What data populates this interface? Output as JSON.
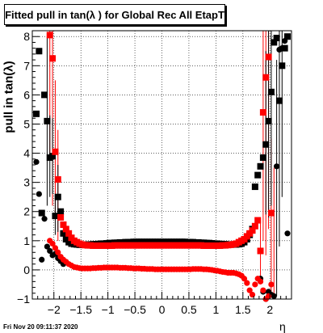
{
  "title": "Fitted pull in tan(λ ) for Global Rec All EtapT",
  "timestamp": "Fri Nov 20 09:11:37 2020",
  "colors": {
    "series_black": "#000000",
    "series_red": "#ff0000",
    "grid": "#000000"
  },
  "chart_data": {
    "type": "scatter",
    "title": "Fitted pull in tan(λ ) for Global Rec All EtapT",
    "xlabel": "η",
    "ylabel": "pull in tan(λ)",
    "xlim": [
      -2.4,
      2.4
    ],
    "ylim": [
      -1,
      8.2
    ],
    "grid": true,
    "x_ticks": [
      -2,
      -1.5,
      -1,
      -0.5,
      0,
      0.5,
      1,
      1.5,
      2
    ],
    "x_tick_labels": [
      "−2",
      "−1.5",
      "−1",
      "−0.5",
      "0",
      "0.5",
      "1",
      "1.5",
      "2"
    ],
    "y_ticks": [
      -1,
      0,
      1,
      2,
      3,
      4,
      5,
      6,
      7,
      8
    ],
    "y_tick_labels": [
      "−1",
      "0",
      "1",
      "2",
      "3",
      "4",
      "5",
      "6",
      "7",
      "8"
    ],
    "series": [
      {
        "color": "#000000",
        "marker": "square",
        "x": [
          -2.325,
          -2.275,
          -2.225,
          -2.175,
          -2.125,
          -2.075,
          -2.025,
          -1.975,
          -1.925,
          -1.875,
          -1.825,
          -1.775,
          -1.725,
          -1.675,
          -1.625,
          -1.575,
          -1.525,
          -1.475,
          -1.425,
          -1.375,
          -1.325,
          -1.275,
          -1.225,
          -1.175,
          -1.125,
          -1.075,
          -1.025,
          -0.975,
          -0.925,
          -0.875,
          -0.825,
          -0.775,
          -0.725,
          -0.675,
          -0.625,
          -0.575,
          -0.525,
          -0.475,
          -0.425,
          -0.375,
          -0.325,
          -0.275,
          -0.225,
          -0.175,
          -0.125,
          -0.075,
          -0.025,
          0.025,
          0.075,
          0.125,
          0.175,
          0.225,
          0.275,
          0.325,
          0.375,
          0.425,
          0.475,
          0.525,
          0.575,
          0.625,
          0.675,
          0.725,
          0.775,
          0.825,
          0.875,
          0.925,
          0.975,
          1.025,
          1.075,
          1.125,
          1.175,
          1.225,
          1.275,
          1.325,
          1.375,
          1.425,
          1.475,
          1.525,
          1.575,
          1.625,
          1.675,
          1.725,
          1.775,
          1.825,
          1.875,
          1.925,
          1.975,
          2.025,
          2.075,
          2.125,
          2.175,
          2.225,
          2.275,
          2.325
        ],
        "y": [
          5.35,
          7.5,
          1.95,
          6.0,
          5.1,
          3.85,
          3.9,
          1.85,
          2.5,
          2.0,
          1.25,
          1.05,
          0.95,
          0.9,
          0.88,
          0.87,
          0.86,
          0.86,
          0.86,
          0.87,
          0.87,
          0.88,
          0.88,
          0.89,
          0.9,
          0.9,
          0.91,
          0.92,
          0.92,
          0.93,
          0.93,
          0.94,
          0.94,
          0.95,
          0.95,
          0.95,
          0.96,
          0.96,
          0.96,
          0.96,
          0.96,
          0.96,
          0.96,
          0.96,
          0.96,
          0.96,
          0.96,
          0.96,
          0.96,
          0.96,
          0.96,
          0.96,
          0.96,
          0.96,
          0.96,
          0.96,
          0.95,
          0.95,
          0.95,
          0.94,
          0.94,
          0.93,
          0.93,
          0.92,
          0.92,
          0.91,
          0.9,
          0.9,
          0.89,
          0.88,
          0.88,
          0.87,
          0.87,
          0.87,
          0.87,
          0.88,
          0.9,
          0.95,
          1.05,
          1.2,
          1.4,
          2.85,
          3.25,
          3.55,
          3.85,
          4.3,
          5.1,
          6.1,
          7.8,
          7.95,
          5.8,
          7.0,
          7.6,
          8.0
        ]
      },
      {
        "color": "#ff0000",
        "marker": "square",
        "x": [
          -2.075,
          -2.025,
          -1.975,
          -1.925,
          -1.875,
          -1.825,
          -1.775,
          -1.725,
          -1.675,
          -1.625,
          -1.575,
          -1.525,
          -1.475,
          -1.425,
          -1.375,
          -1.325,
          -1.275,
          -1.225,
          -1.175,
          -1.125,
          -1.075,
          -1.025,
          -0.975,
          -0.925,
          -0.875,
          -0.825,
          -0.775,
          -0.725,
          -0.675,
          -0.625,
          -0.575,
          -0.525,
          -0.475,
          -0.425,
          -0.375,
          -0.325,
          -0.275,
          -0.225,
          -0.175,
          -0.125,
          -0.075,
          -0.025,
          0.025,
          0.075,
          0.125,
          0.175,
          0.225,
          0.275,
          0.325,
          0.375,
          0.425,
          0.475,
          0.525,
          0.575,
          0.625,
          0.675,
          0.725,
          0.775,
          0.825,
          0.875,
          0.925,
          0.975,
          1.025,
          1.075,
          1.125,
          1.175,
          1.225,
          1.275,
          1.325,
          1.375,
          1.425,
          1.475,
          1.525,
          1.575,
          1.625,
          1.675,
          1.725,
          1.775,
          1.825,
          1.875,
          1.925,
          1.975,
          2.025
        ],
        "y": [
          8.05,
          7.25,
          4.05,
          3.1,
          1.8,
          1.55,
          1.4,
          1.25,
          1.1,
          1.0,
          0.95,
          0.9,
          0.87,
          0.85,
          0.84,
          0.84,
          0.83,
          0.83,
          0.83,
          0.83,
          0.83,
          0.83,
          0.83,
          0.83,
          0.84,
          0.84,
          0.84,
          0.84,
          0.84,
          0.84,
          0.84,
          0.84,
          0.84,
          0.84,
          0.84,
          0.84,
          0.84,
          0.84,
          0.84,
          0.84,
          0.84,
          0.84,
          0.84,
          0.84,
          0.84,
          0.84,
          0.84,
          0.84,
          0.84,
          0.84,
          0.84,
          0.84,
          0.84,
          0.84,
          0.84,
          0.84,
          0.84,
          0.83,
          0.83,
          0.83,
          0.83,
          0.83,
          0.83,
          0.83,
          0.84,
          0.84,
          0.85,
          0.86,
          0.88,
          0.9,
          0.95,
          1.0,
          1.05,
          1.15,
          1.25,
          1.35,
          1.5,
          1.7,
          0.65,
          5.4,
          6.6,
          7.3,
          1.95
        ]
      },
      {
        "color": "#000000",
        "marker": "circle",
        "x": [
          -2.325,
          -2.275,
          -2.225,
          -2.175,
          -2.125,
          -2.075,
          -2.025,
          -1.975,
          -1.925,
          -1.875,
          -1.825,
          1.825,
          1.875,
          1.925,
          1.975,
          2.025,
          2.075,
          2.125,
          2.175,
          2.225,
          2.275,
          2.325
        ],
        "y": [
          3.7,
          2.6,
          0.35,
          1.75,
          0.8,
          0.65,
          0.5,
          0.55,
          0.4,
          0.3,
          0.2,
          -0.3,
          -0.75,
          -1.0,
          -0.75,
          -0.85,
          -0.9,
          3.55,
          7.55,
          7.6,
          7.85,
          1.25
        ]
      },
      {
        "color": "#ff0000",
        "marker": "circle",
        "x": [
          -2.075,
          -2.025,
          -1.975,
          -1.925,
          -1.875,
          -1.825,
          -1.775,
          -1.725,
          -1.675,
          -1.625,
          -1.575,
          -1.525,
          -1.475,
          -1.425,
          -1.375,
          -1.325,
          -1.275,
          -1.225,
          -1.175,
          -1.125,
          -1.075,
          -1.025,
          -0.975,
          -0.925,
          -0.875,
          -0.825,
          -0.775,
          -0.725,
          -0.675,
          -0.625,
          -0.575,
          -0.525,
          -0.475,
          -0.425,
          -0.375,
          -0.325,
          -0.275,
          -0.225,
          -0.175,
          -0.125,
          -0.075,
          -0.025,
          0.025,
          0.075,
          0.125,
          0.175,
          0.225,
          0.275,
          0.325,
          0.375,
          0.425,
          0.475,
          0.525,
          0.575,
          0.625,
          0.675,
          0.725,
          0.775,
          0.825,
          0.875,
          0.925,
          0.975,
          1.025,
          1.075,
          1.125,
          1.175,
          1.225,
          1.275,
          1.325,
          1.375,
          1.425,
          1.475,
          1.525,
          1.575,
          1.625,
          1.675,
          1.725,
          1.775,
          1.825,
          1.875,
          1.925,
          1.975,
          2.025
        ],
        "y": [
          1.0,
          0.9,
          0.75,
          0.6,
          0.45,
          0.35,
          0.28,
          0.2,
          0.15,
          0.1,
          0.08,
          0.06,
          0.05,
          0.05,
          0.05,
          0.05,
          0.06,
          0.06,
          0.07,
          0.07,
          0.08,
          0.08,
          0.08,
          0.08,
          0.08,
          0.08,
          0.07,
          0.07,
          0.07,
          0.06,
          0.06,
          0.05,
          0.05,
          0.05,
          0.04,
          0.04,
          0.03,
          0.03,
          0.03,
          0.02,
          0.02,
          0.02,
          0.02,
          0.02,
          0.02,
          0.02,
          0.02,
          0.02,
          0.02,
          0.02,
          0.02,
          0.02,
          0.02,
          0.03,
          0.03,
          0.03,
          0.03,
          0.02,
          0.02,
          0.01,
          0.0,
          -0.02,
          -0.03,
          -0.05,
          -0.07,
          -0.08,
          -0.1,
          -0.1,
          -0.1,
          -0.12,
          -0.15,
          -0.2,
          -0.3,
          -0.45,
          -0.7,
          -0.85,
          -0.5,
          -0.3,
          -0.4,
          -0.7,
          -1.0,
          -0.9,
          -0.5
        ]
      }
    ],
    "error_bars": [
      {
        "color": "#ff0000",
        "x": -2.075,
        "low": 3.8,
        "high": 8.2
      },
      {
        "color": "#ff0000",
        "x": -2.025,
        "low": 2.2,
        "high": 8.2
      },
      {
        "color": "#ff0000",
        "x": -1.975,
        "low": 1.8,
        "high": 6.5
      },
      {
        "color": "#ff0000",
        "x": -1.925,
        "low": 1.0,
        "high": 4.8
      },
      {
        "color": "#000000",
        "x": -2.125,
        "low": 2.2,
        "high": 8.0
      },
      {
        "color": "#000000",
        "x": -2.075,
        "low": 2.5,
        "high": 5.3
      },
      {
        "color": "#000000",
        "x": -2.025,
        "low": 2.6,
        "high": 5.2
      },
      {
        "color": "#000000",
        "x": -1.975,
        "low": 1.2,
        "high": 2.6
      },
      {
        "color": "#000000",
        "x": -1.925,
        "low": 1.3,
        "high": 3.6
      },
      {
        "color": "#ff0000",
        "x": 1.825,
        "low": -0.3,
        "high": 1.8
      },
      {
        "color": "#ff0000",
        "x": 1.875,
        "low": 1.0,
        "high": 8.2
      },
      {
        "color": "#ff0000",
        "x": 1.925,
        "low": 0.5,
        "high": 8.2
      },
      {
        "color": "#ff0000",
        "x": 1.975,
        "low": 1.4,
        "high": 8.2
      },
      {
        "color": "#ff0000",
        "x": 2.025,
        "low": -0.8,
        "high": 4.5
      },
      {
        "color": "#ff0000",
        "x": 2.075,
        "low": -0.8,
        "high": 3.5
      },
      {
        "color": "#000000",
        "x": 1.925,
        "low": 1.9,
        "high": 7.5
      },
      {
        "color": "#000000",
        "x": 1.975,
        "low": 1.8,
        "high": 8.2
      },
      {
        "color": "#000000",
        "x": 2.025,
        "low": 2.2,
        "high": 8.2
      },
      {
        "color": "#000000",
        "x": 2.125,
        "low": -0.9,
        "high": 7.2
      },
      {
        "color": "#000000",
        "x": 2.175,
        "low": 0.8,
        "high": 8.2
      },
      {
        "color": "#000000",
        "x": 2.225,
        "low": 2.5,
        "high": 8.2
      }
    ]
  }
}
